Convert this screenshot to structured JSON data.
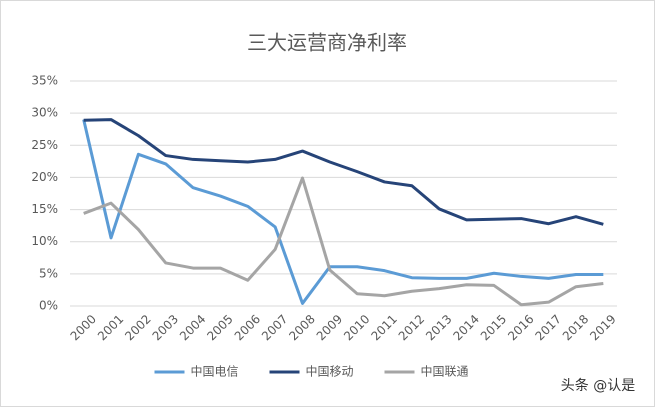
{
  "chart_data": {
    "type": "line",
    "title": "三大运营商净利率",
    "categories": [
      "2000",
      "2001",
      "2002",
      "2003",
      "2004",
      "2005",
      "2006",
      "2007",
      "2008",
      "2009",
      "2010",
      "2011",
      "2012",
      "2013",
      "2014",
      "2015",
      "2016",
      "2017",
      "2018",
      "2019"
    ],
    "series": [
      {
        "name": "中国电信",
        "color": "#5b9bd5",
        "values": [
          29,
          10.6,
          23.6,
          22.1,
          18.4,
          17.1,
          15.5,
          12.3,
          0.4,
          6.1,
          6.1,
          5.5,
          4.4,
          4.3,
          4.3,
          5.1,
          4.6,
          4.3,
          4.9,
          4.9
        ]
      },
      {
        "name": "中国移动",
        "color": "#264478",
        "values": [
          28.9,
          29.0,
          26.5,
          23.4,
          22.8,
          22.6,
          22.4,
          22.8,
          24.1,
          22.4,
          20.9,
          19.3,
          18.7,
          15.1,
          13.4,
          13.5,
          13.6,
          12.8,
          13.9,
          12.7
        ]
      },
      {
        "name": "中国联通",
        "color": "#a5a5a5",
        "values": [
          14.4,
          16.0,
          11.9,
          6.7,
          5.9,
          5.9,
          4.0,
          8.8,
          19.9,
          5.6,
          1.9,
          1.6,
          2.3,
          2.7,
          3.3,
          3.2,
          0.2,
          0.6,
          3.0,
          3.5
        ]
      }
    ],
    "ylim": [
      0,
      35
    ],
    "yticks": [
      {
        "value": 0,
        "label": "0%"
      },
      {
        "value": 5,
        "label": "5%"
      },
      {
        "value": 10,
        "label": "10%"
      },
      {
        "value": 15,
        "label": "15%"
      },
      {
        "value": 20,
        "label": "20%"
      },
      {
        "value": 25,
        "label": "25%"
      },
      {
        "value": 30,
        "label": "30%"
      },
      {
        "value": 35,
        "label": "35%"
      }
    ],
    "grid": true,
    "legend": "bottom",
    "watermark": "头条 @认是"
  }
}
